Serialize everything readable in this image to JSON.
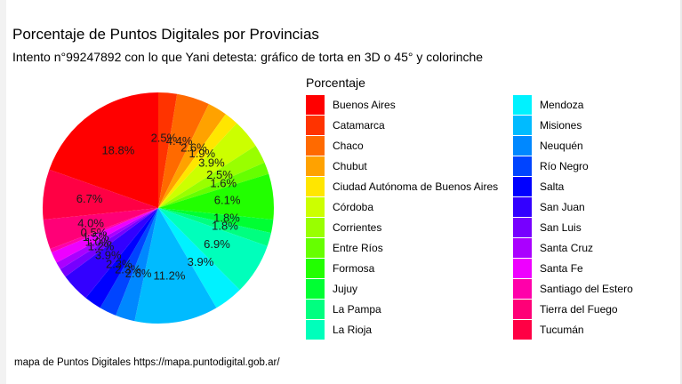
{
  "title": "Porcentaje de Puntos Digitales por Provincias",
  "subtitle": "Intento n°99247892 con lo que Yani detesta: gráfico de torta en 3D o 45° y colorinche",
  "caption": "mapa de Puntos Digitales https://mapa.puntodigital.gob.ar/",
  "chart_data": {
    "type": "pie",
    "legend_title": "Porcentaje",
    "legend_position": "right",
    "slices": [
      {
        "name": "Buenos Aires",
        "value": 18.8,
        "label": "18.8%",
        "color": "#FF0000"
      },
      {
        "name": "Catamarca",
        "value": 2.5,
        "label": "2.5%",
        "color": "#FF3300"
      },
      {
        "name": "Chaco",
        "value": 4.4,
        "label": "4.4%",
        "color": "#FF6A00"
      },
      {
        "name": "Chubut",
        "value": 2.6,
        "label": "2.6%",
        "color": "#FFA200"
      },
      {
        "name": "Ciudad Autónoma de Buenos Aires",
        "value": 1.9,
        "label": "1.9%",
        "color": "#FFE600"
      },
      {
        "name": "Córdoba",
        "value": 3.9,
        "label": "3.9%",
        "color": "#CCFF00"
      },
      {
        "name": "Corrientes",
        "value": 2.5,
        "label": "2.5%",
        "color": "#99FF00"
      },
      {
        "name": "Entre Ríos",
        "value": 1.6,
        "label": "1.6%",
        "color": "#66FF00"
      },
      {
        "name": "Formosa",
        "value": 6.1,
        "label": "6.1%",
        "color": "#22FF00"
      },
      {
        "name": "Jujuy",
        "value": 1.8,
        "label": "1.8%",
        "color": "#00FF33"
      },
      {
        "name": "La Pampa",
        "value": 1.8,
        "label": "1.8%",
        "color": "#00FF80"
      },
      {
        "name": "La Rioja",
        "value": 6.9,
        "label": "6.9%",
        "color": "#00FFBB"
      },
      {
        "name": "Mendoza",
        "value": 3.9,
        "label": "3.9%",
        "color": "#00F2FF"
      },
      {
        "name": "Misiones",
        "value": 11.2,
        "label": "11.2%",
        "color": "#00BBFF"
      },
      {
        "name": "Neuquén",
        "value": 2.6,
        "label": "2.6%",
        "color": "#0088FF"
      },
      {
        "name": "Río Negro",
        "value": 2.3,
        "label": "2.3%",
        "color": "#0044FF"
      },
      {
        "name": "Salta",
        "value": 2.3,
        "label": "2.3%",
        "color": "#0000FF"
      },
      {
        "name": "San Juan",
        "value": 3.9,
        "label": "3.9%",
        "color": "#3300FF"
      },
      {
        "name": "San Luis",
        "value": 1.2,
        "label": "1.2%",
        "color": "#7700FF"
      },
      {
        "name": "Santa Cruz",
        "value": 1.0,
        "label": "1.0%",
        "color": "#AA00FF"
      },
      {
        "name": "Santa Fe",
        "value": 1.5,
        "label": "1.5%",
        "color": "#EE00FF"
      },
      {
        "name": "Santiago del Estero",
        "value": 0.5,
        "label": "0.5%",
        "color": "#FF00AA"
      },
      {
        "name": "Tierra del Fuego",
        "value": 4.0,
        "label": "4.0%",
        "color": "#FF0077"
      },
      {
        "name": "Tucumán",
        "value": 6.7,
        "label": "6.7%",
        "color": "#FF0044"
      }
    ]
  }
}
